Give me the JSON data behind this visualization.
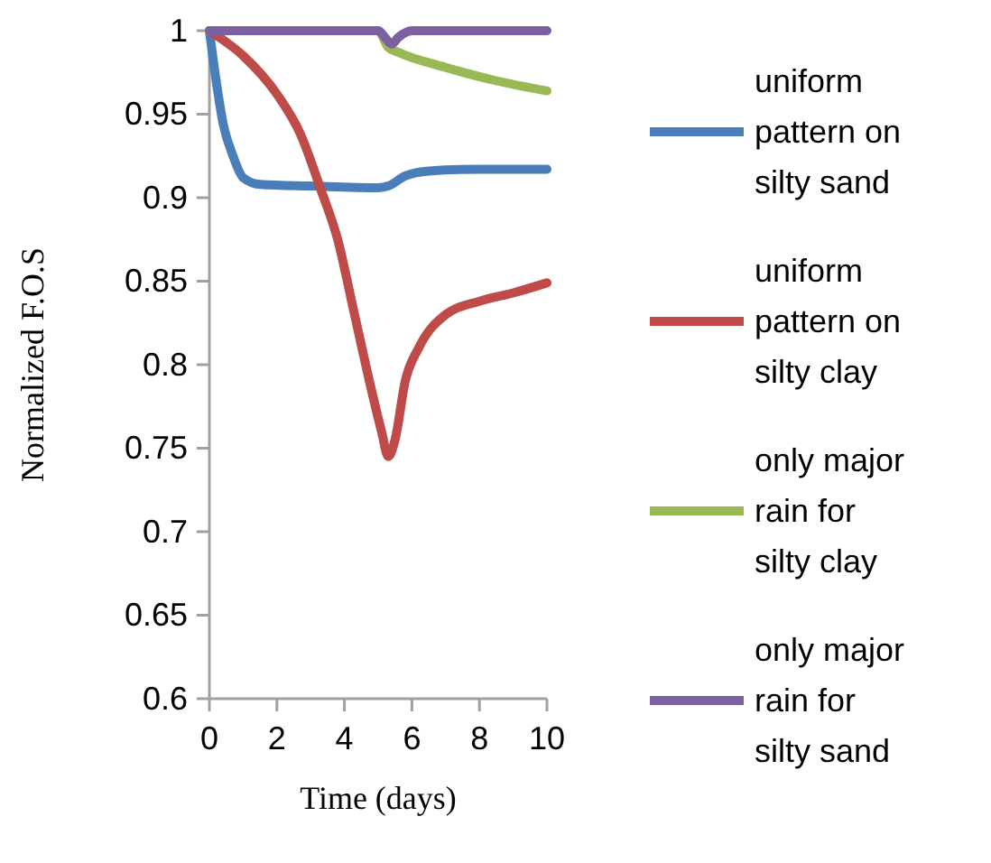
{
  "chart_data": {
    "type": "line",
    "xlabel": "Time (days)",
    "ylabel": "Normalized F.O.S",
    "xlim": [
      0,
      10
    ],
    "xticks": [
      0,
      2,
      4,
      6,
      8,
      10
    ],
    "ylim": [
      0.6,
      1
    ],
    "yticks": [
      0.6,
      0.65,
      0.7,
      0.75,
      0.8,
      0.85,
      0.9,
      0.95,
      1
    ],
    "grid": false,
    "legend": "right",
    "marker": "none",
    "line_style": "solid",
    "series": [
      {
        "name": "uniform pattern on silty sand",
        "color": "#4a7ebb",
        "x": [
          0,
          0.2,
          0.4,
          0.7,
          1,
          1.5,
          3,
          5,
          5.3,
          5.8,
          6.5,
          8,
          10
        ],
        "values": [
          1,
          0.97,
          0.945,
          0.925,
          0.912,
          0.908,
          0.907,
          0.906,
          0.907,
          0.913,
          0.916,
          0.917,
          0.917
        ]
      },
      {
        "name": "uniform pattern on silty clay",
        "color": "#be4b48",
        "x": [
          0,
          1,
          2,
          2.7,
          3.3,
          3.8,
          4.3,
          4.8,
          5.1,
          5.3,
          5.5,
          5.8,
          6.2,
          7,
          8,
          9,
          10
        ],
        "values": [
          1,
          0.985,
          0.962,
          0.938,
          0.905,
          0.875,
          0.83,
          0.785,
          0.76,
          0.745,
          0.755,
          0.79,
          0.81,
          0.83,
          0.838,
          0.843,
          0.849
        ]
      },
      {
        "name": "only major rain for silty clay",
        "color": "#98b954",
        "x": [
          0,
          5,
          5.3,
          5.6,
          7,
          8.5,
          10
        ],
        "values": [
          1,
          1,
          0.99,
          0.987,
          0.978,
          0.97,
          0.964
        ]
      },
      {
        "name": "only major rain for silty sand",
        "color": "#7d60a0",
        "x": [
          0,
          5,
          5.2,
          5.4,
          5.6,
          6,
          10
        ],
        "values": [
          1,
          1,
          0.996,
          0.992,
          0.996,
          1,
          1
        ]
      }
    ]
  }
}
